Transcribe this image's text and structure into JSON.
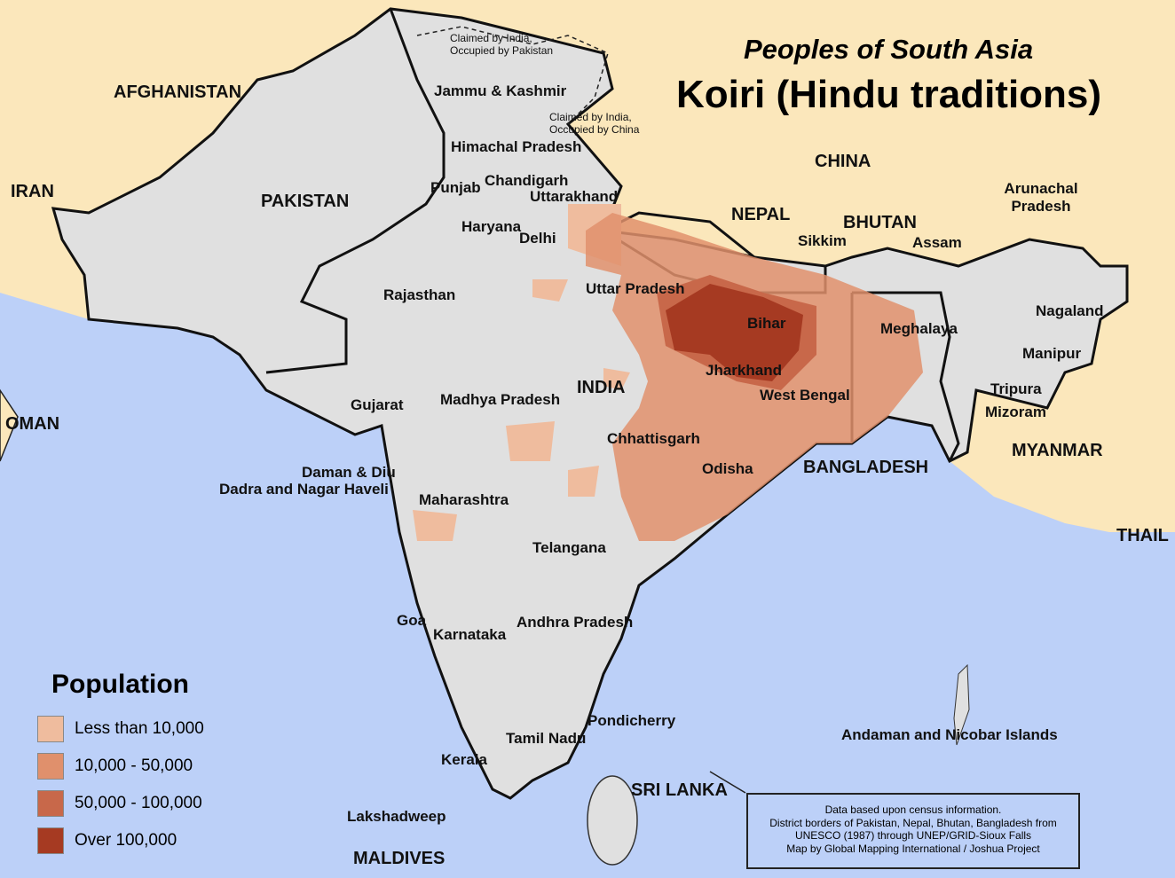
{
  "title": {
    "subtitle": "Peoples of South Asia",
    "main": "Koiri (Hindu traditions)"
  },
  "colors": {
    "sea": "#bcd0f8",
    "foreign_land": "#fbe7bb",
    "region_land": "#e0e0e0",
    "less_than_10000": "#efbc9e",
    "10000_50000": "#e0906c",
    "50000_100000": "#c8684a",
    "over_100000": "#a63a22"
  },
  "legend": {
    "title": "Population",
    "items": [
      {
        "label": "Less than 10,000",
        "color": "#efbc9e"
      },
      {
        "label": "10,000 - 50,000",
        "color": "#e0906c"
      },
      {
        "label": "50,000 - 100,000",
        "color": "#c8684a"
      },
      {
        "label": "Over 100,000",
        "color": "#a63a22"
      }
    ]
  },
  "countries": [
    "AFGHANISTAN",
    "IRAN",
    "PAKISTAN",
    "CHINA",
    "NEPAL",
    "BHUTAN",
    "INDIA",
    "OMAN",
    "BANGLADESH",
    "MYANMAR",
    "THAIL",
    "SRI LANKA",
    "MALDIVES"
  ],
  "regions": [
    "Jammu & Kashmir",
    "Himachal Pradesh",
    "Punjab",
    "Chandigarh",
    "Uttarakhand",
    "Haryana",
    "Delhi",
    "Rajasthan",
    "Uttar Pradesh",
    "Bihar",
    "Jharkhand",
    "West Bengal",
    "Sikkim",
    "Assam",
    "Arunachal Pradesh",
    "Nagaland",
    "Meghalaya",
    "Manipur",
    "Tripura",
    "Mizoram",
    "Gujarat",
    "Madhya Pradesh",
    "Chhattisgarh",
    "Odisha",
    "Daman & Diu",
    "Dadra and Nagar Haveli",
    "Maharashtra",
    "Telangana",
    "Goa",
    "Karnataka",
    "Andhra Pradesh",
    "Pondicherry",
    "Tamil Nadu",
    "Kerala",
    "Lakshadweep",
    "Andaman and Nicobar Islands"
  ],
  "notes": [
    "Claimed by India, Occupied by Pakistan",
    "Claimed by India, Occupied by China"
  ],
  "credits": [
    "Data based upon census information.",
    "District borders of Pakistan, Nepal, Bhutan, Bangladesh from",
    "UNESCO (1987) through UNEP/GRID-Sioux Falls",
    "Map by Global Mapping International / Joshua Project"
  ]
}
